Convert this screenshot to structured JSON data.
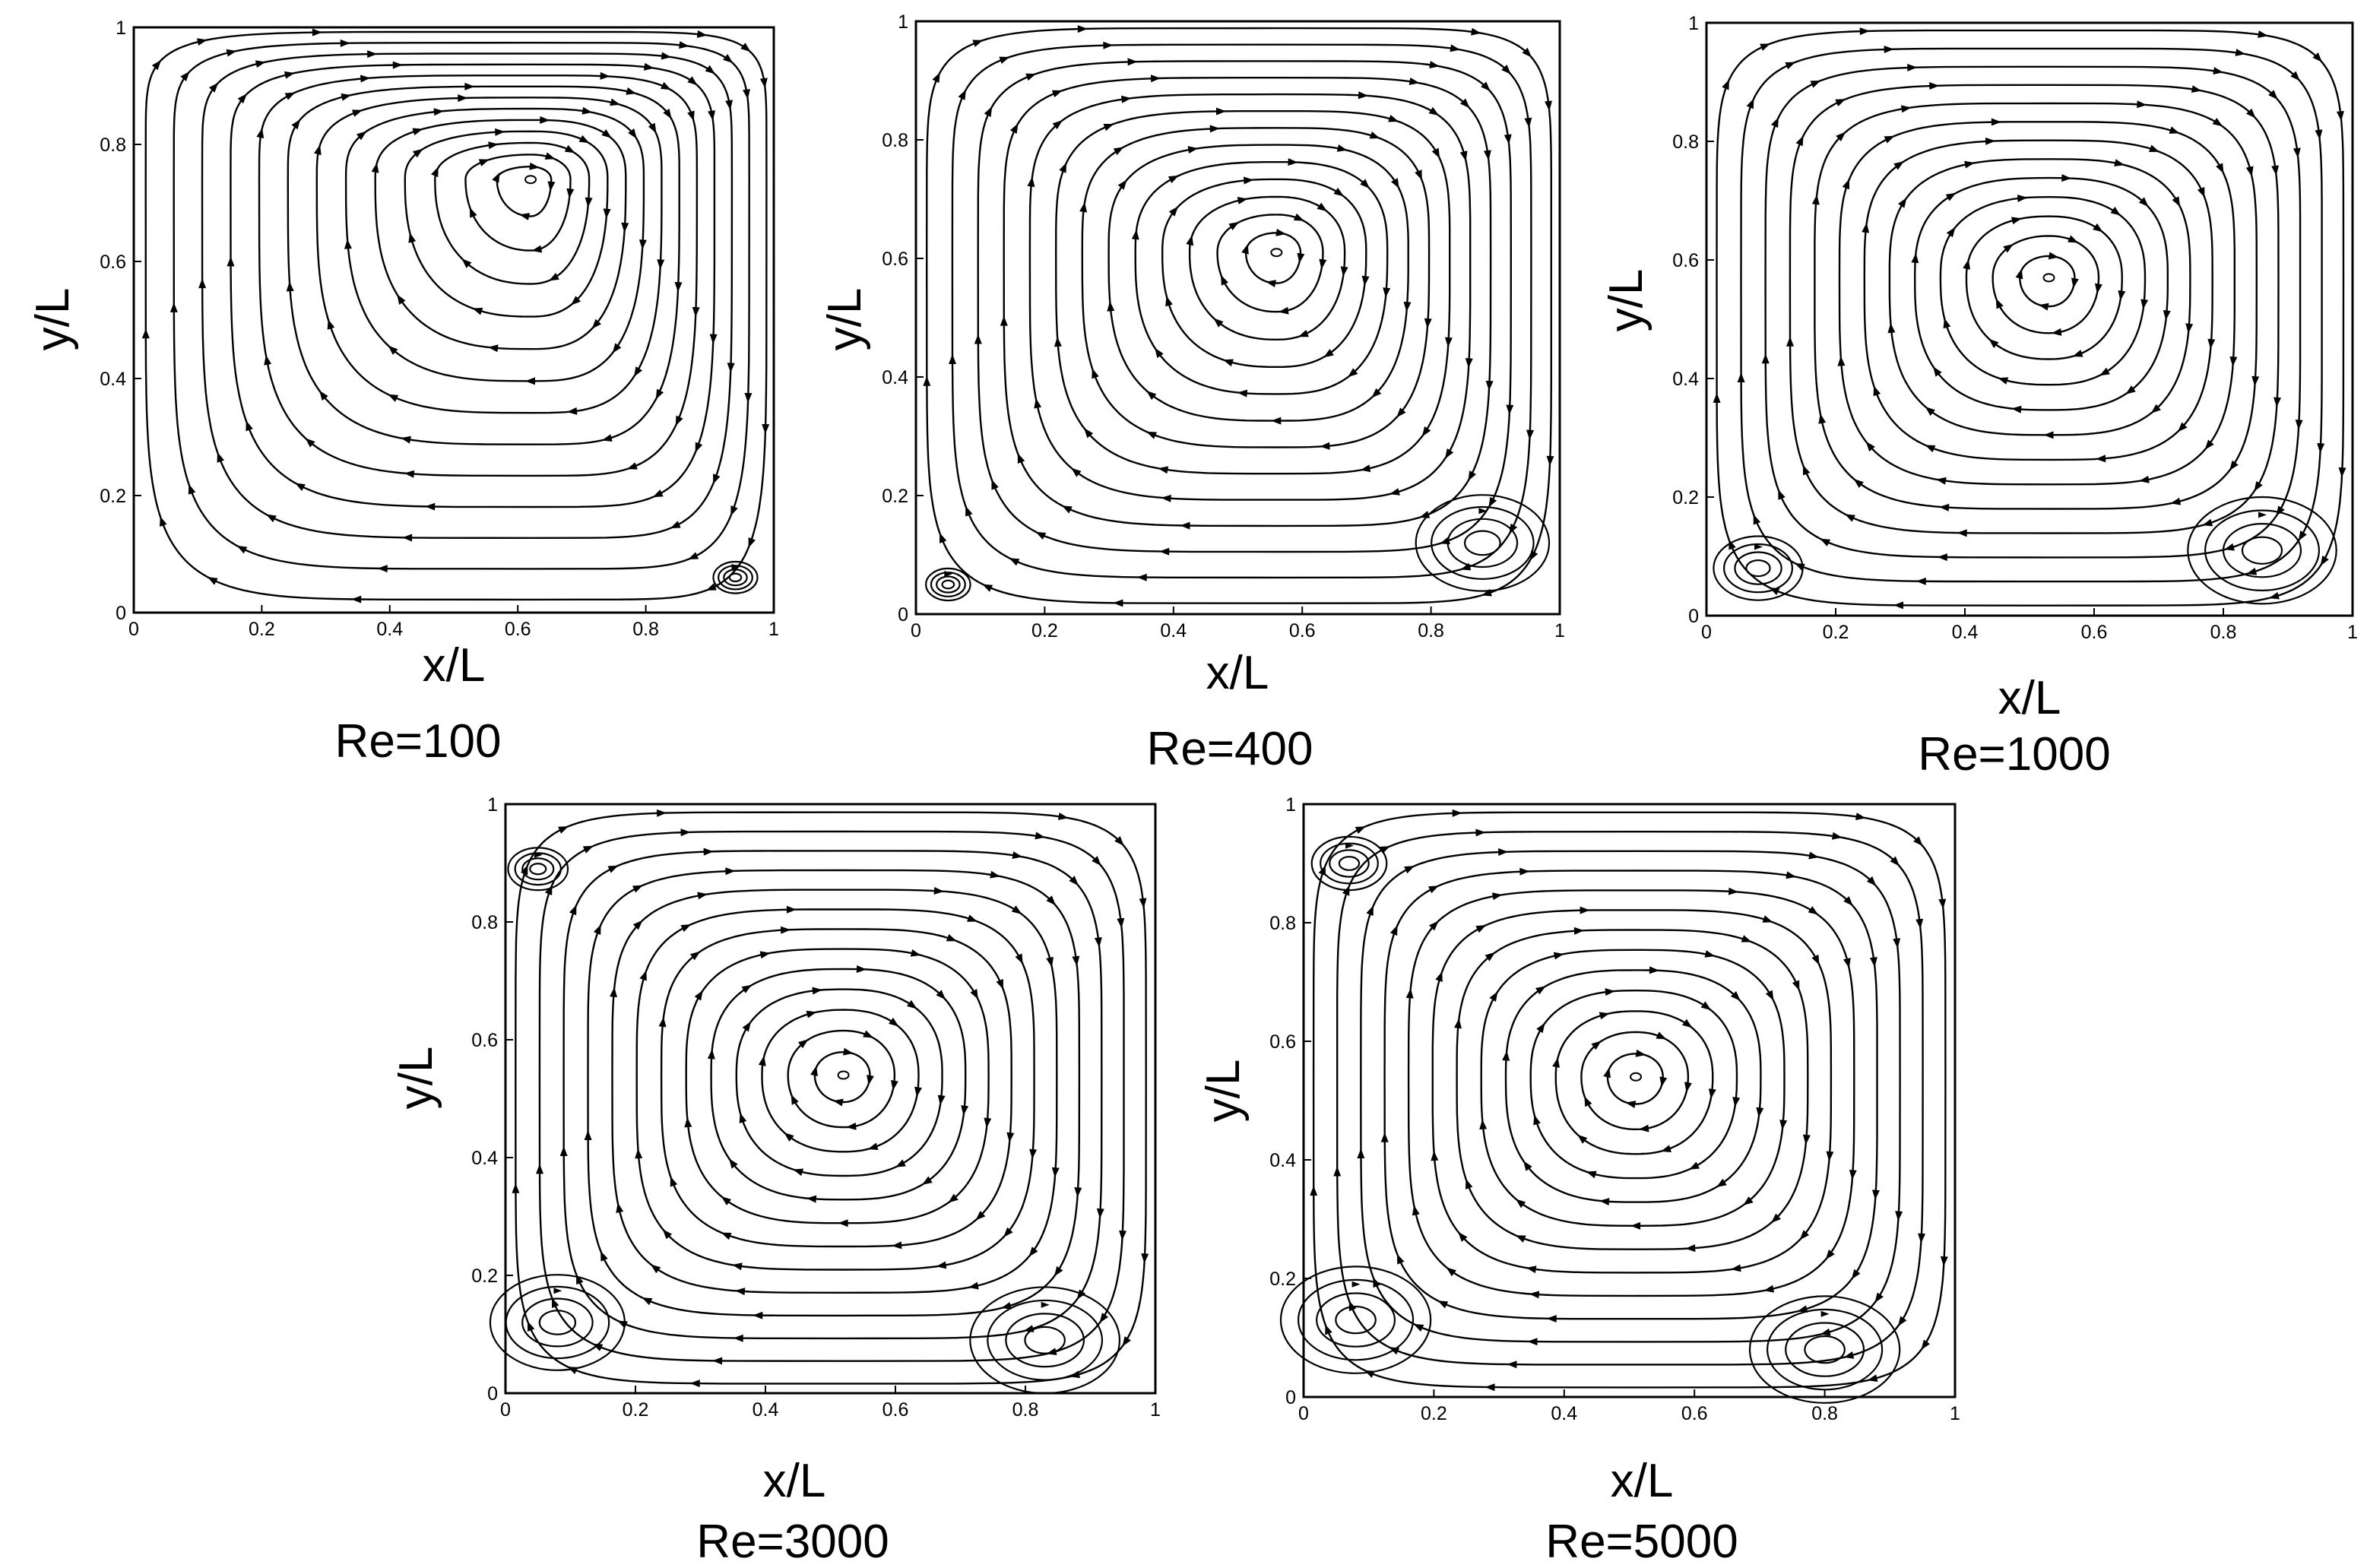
{
  "chart_data": [
    {
      "type": "streamline",
      "caption": "Re=100",
      "xlabel": "x/L",
      "ylabel": "y/L",
      "xlim": [
        0,
        1
      ],
      "ylim": [
        0,
        1
      ],
      "xticks": [
        "0",
        "0.2",
        "0.4",
        "0.6",
        "0.8",
        "1"
      ],
      "yticks": [
        "0",
        "0.2",
        "0.4",
        "0.6",
        "0.8",
        "1"
      ],
      "primary_vortex": {
        "x": 0.62,
        "y": 0.74
      },
      "secondary_vortices": [
        {
          "x": 0.94,
          "y": 0.06,
          "r": 0.03
        }
      ]
    },
    {
      "type": "streamline",
      "caption": "Re=400",
      "xlabel": "x/L",
      "ylabel": "y/L",
      "xlim": [
        0,
        1
      ],
      "ylim": [
        0,
        1
      ],
      "xticks": [
        "0",
        "0.2",
        "0.4",
        "0.6",
        "0.8",
        "1"
      ],
      "yticks": [
        "0",
        "0.2",
        "0.4",
        "0.6",
        "0.8",
        "1"
      ],
      "primary_vortex": {
        "x": 0.56,
        "y": 0.61
      },
      "secondary_vortices": [
        {
          "x": 0.88,
          "y": 0.12,
          "r": 0.09
        },
        {
          "x": 0.05,
          "y": 0.05,
          "r": 0.03
        }
      ]
    },
    {
      "type": "streamline",
      "caption": "Re=1000",
      "xlabel": "x/L",
      "ylabel": "y/L",
      "xlim": [
        0,
        1
      ],
      "ylim": [
        0,
        1
      ],
      "xticks": [
        "0",
        "0.2",
        "0.4",
        "0.6",
        "0.8",
        "1"
      ],
      "yticks": [
        "0",
        "0.2",
        "0.4",
        "0.6",
        "0.8",
        "1"
      ],
      "primary_vortex": {
        "x": 0.53,
        "y": 0.57
      },
      "secondary_vortices": [
        {
          "x": 0.86,
          "y": 0.11,
          "r": 0.1
        },
        {
          "x": 0.08,
          "y": 0.08,
          "r": 0.06
        }
      ]
    },
    {
      "type": "streamline",
      "caption": "Re=3000",
      "xlabel": "x/L",
      "ylabel": "y/L",
      "xlim": [
        0,
        1
      ],
      "ylim": [
        0,
        1
      ],
      "xticks": [
        "0",
        "0.2",
        "0.4",
        "0.6",
        "0.8",
        "1"
      ],
      "yticks": [
        "0",
        "0.2",
        "0.4",
        "0.6",
        "0.8",
        "1"
      ],
      "primary_vortex": {
        "x": 0.52,
        "y": 0.54
      },
      "secondary_vortices": [
        {
          "x": 0.83,
          "y": 0.09,
          "r": 0.1
        },
        {
          "x": 0.08,
          "y": 0.12,
          "r": 0.09
        },
        {
          "x": 0.05,
          "y": 0.89,
          "r": 0.04
        }
      ]
    },
    {
      "type": "streamline",
      "caption": "Re=5000",
      "xlabel": "x/L",
      "ylabel": "y/L",
      "xlim": [
        0,
        1
      ],
      "ylim": [
        0,
        1
      ],
      "xticks": [
        "0",
        "0.2",
        "0.4",
        "0.6",
        "0.8",
        "1"
      ],
      "yticks": [
        "0",
        "0.2",
        "0.4",
        "0.6",
        "0.8",
        "1"
      ],
      "primary_vortex": {
        "x": 0.51,
        "y": 0.54
      },
      "secondary_vortices": [
        {
          "x": 0.8,
          "y": 0.08,
          "r": 0.1
        },
        {
          "x": 0.08,
          "y": 0.13,
          "r": 0.1
        },
        {
          "x": 0.07,
          "y": 0.9,
          "r": 0.05
        }
      ]
    }
  ]
}
